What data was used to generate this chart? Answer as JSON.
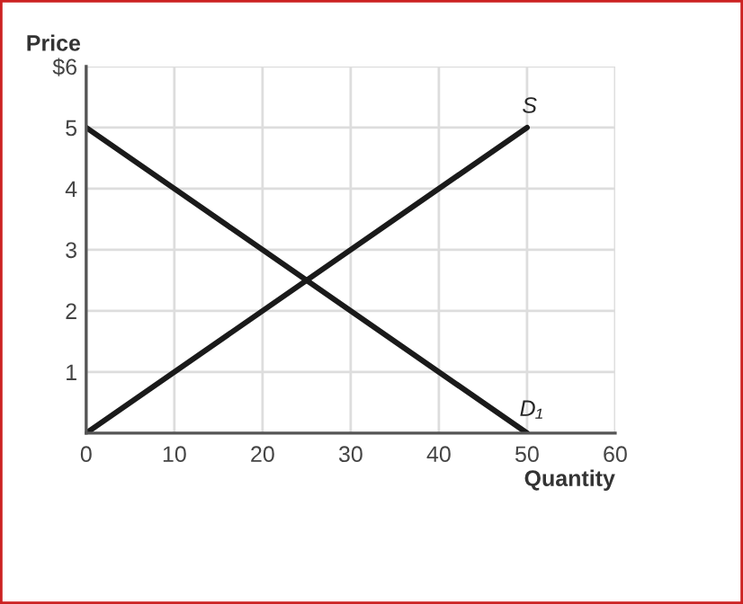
{
  "chart_data": {
    "type": "line",
    "xlabel": "Quantity",
    "ylabel": "Price",
    "x": [
      0,
      50
    ],
    "series": [
      {
        "name": "S",
        "color": "#1a1a1a",
        "values": [
          0,
          5
        ]
      },
      {
        "name": "D₁",
        "color": "#1a1a1a",
        "values": [
          5,
          0
        ]
      }
    ],
    "xlim": [
      0,
      60
    ],
    "ylim": [
      0,
      6
    ],
    "xticks": [
      0,
      10,
      20,
      30,
      40,
      50,
      60
    ],
    "yticks": [
      1,
      2,
      3,
      4,
      5,
      {
        "value": 6,
        "label": "$6"
      }
    ],
    "grid": true,
    "legend": false,
    "marker": "none",
    "line_style": "solid"
  }
}
